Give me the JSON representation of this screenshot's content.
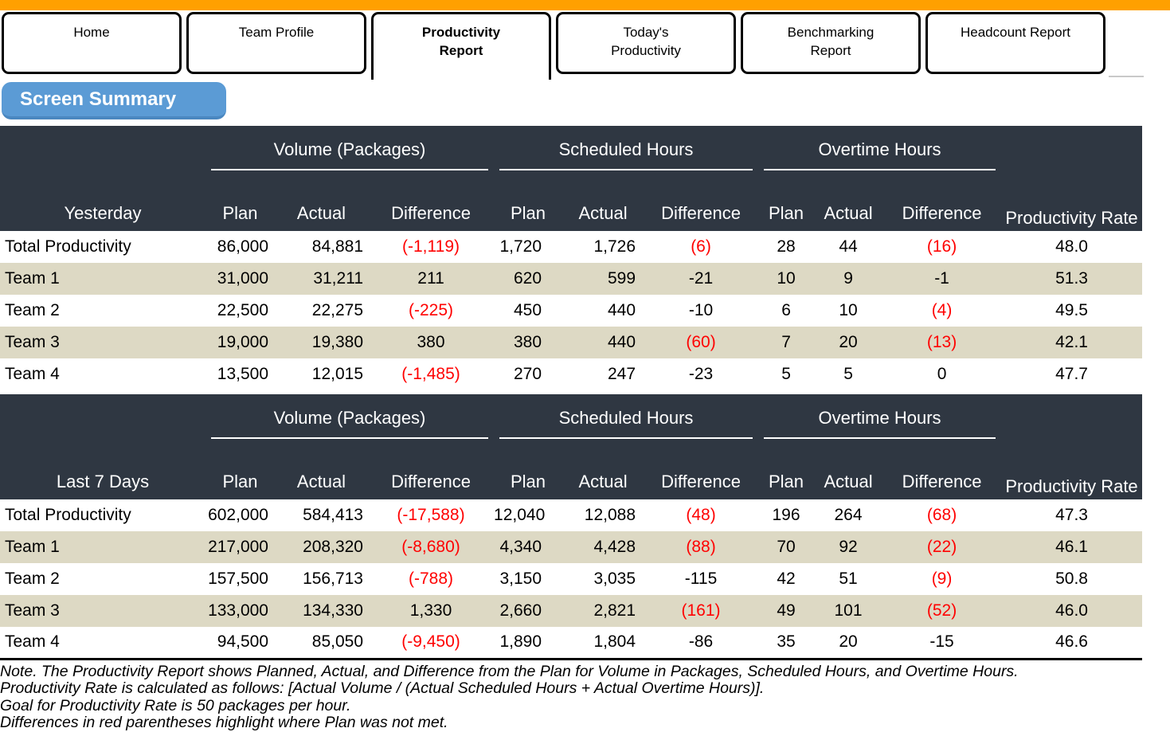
{
  "tabs": [
    {
      "label": "Home",
      "active": false
    },
    {
      "label": "Team Profile",
      "active": false
    },
    {
      "label": "Productivity\nReport",
      "active": true
    },
    {
      "label": "Today's\nProductivity",
      "active": false
    },
    {
      "label": "Benchmarking\nReport",
      "active": false
    },
    {
      "label": "Headcount Report",
      "active": false
    }
  ],
  "screen_summary_label": "Screen Summary",
  "colors": {
    "accent_orange": "#FFA000",
    "button_blue": "#5B9BD5",
    "header_dark": "#2F3742",
    "row_tan": "#DDD9C4",
    "negative_red": "#FF0000"
  },
  "tables": [
    {
      "period_label": "Yesterday",
      "groups": [
        "Volume (Packages)",
        "Scheduled Hours",
        "Overtime Hours"
      ],
      "rate_header": "Productivity Rate",
      "sub_headers": [
        "Plan",
        "Actual",
        "Difference",
        "Plan",
        "Actual",
        "Difference",
        "Plan",
        "Actual",
        "Difference"
      ],
      "rows": [
        {
          "label": "Total Productivity",
          "values": [
            "86,000",
            "84,881",
            "(-1,119)",
            "1,720",
            "1,726",
            "(6)",
            "28",
            "44",
            "(16)",
            "48.0"
          ],
          "red": [
            false,
            false,
            true,
            false,
            false,
            true,
            false,
            false,
            true,
            false
          ]
        },
        {
          "label": "Team 1",
          "values": [
            "31,000",
            "31,211",
            "211",
            "620",
            "599",
            "-21",
            "10",
            "9",
            "-1",
            "51.3"
          ],
          "red": [
            false,
            false,
            false,
            false,
            false,
            false,
            false,
            false,
            false,
            false
          ]
        },
        {
          "label": "Team 2",
          "values": [
            "22,500",
            "22,275",
            "(-225)",
            "450",
            "440",
            "-10",
            "6",
            "10",
            "(4)",
            "49.5"
          ],
          "red": [
            false,
            false,
            true,
            false,
            false,
            false,
            false,
            false,
            true,
            false
          ]
        },
        {
          "label": "Team 3",
          "values": [
            "19,000",
            "19,380",
            "380",
            "380",
            "440",
            "(60)",
            "7",
            "20",
            "(13)",
            "42.1"
          ],
          "red": [
            false,
            false,
            false,
            false,
            false,
            true,
            false,
            false,
            true,
            false
          ]
        },
        {
          "label": "Team 4",
          "values": [
            "13,500",
            "12,015",
            "(-1,485)",
            "270",
            "247",
            "-23",
            "5",
            "5",
            "0",
            "47.7"
          ],
          "red": [
            false,
            false,
            true,
            false,
            false,
            false,
            false,
            false,
            false,
            false
          ]
        }
      ]
    },
    {
      "period_label": "Last 7 Days",
      "groups": [
        "Volume (Packages)",
        "Scheduled Hours",
        "Overtime Hours"
      ],
      "rate_header": "Productivity Rate",
      "sub_headers": [
        "Plan",
        "Actual",
        "Difference",
        "Plan",
        "Actual",
        "Difference",
        "Plan",
        "Actual",
        "Difference"
      ],
      "rows": [
        {
          "label": "Total Productivity",
          "values": [
            "602,000",
            "584,413",
            "(-17,588)",
            "12,040",
            "12,088",
            "(48)",
            "196",
            "264",
            "(68)",
            "47.3"
          ],
          "red": [
            false,
            false,
            true,
            false,
            false,
            true,
            false,
            false,
            true,
            false
          ]
        },
        {
          "label": "Team 1",
          "values": [
            "217,000",
            "208,320",
            "(-8,680)",
            "4,340",
            "4,428",
            "(88)",
            "70",
            "92",
            "(22)",
            "46.1"
          ],
          "red": [
            false,
            false,
            true,
            false,
            false,
            true,
            false,
            false,
            true,
            false
          ]
        },
        {
          "label": "Team 2",
          "values": [
            "157,500",
            "156,713",
            "(-788)",
            "3,150",
            "3,035",
            "-115",
            "42",
            "51",
            "(9)",
            "50.8"
          ],
          "red": [
            false,
            false,
            true,
            false,
            false,
            false,
            false,
            false,
            true,
            false
          ]
        },
        {
          "label": "Team 3",
          "values": [
            "133,000",
            "134,330",
            "1,330",
            "2,660",
            "2,821",
            "(161)",
            "49",
            "101",
            "(52)",
            "46.0"
          ],
          "red": [
            false,
            false,
            false,
            false,
            false,
            true,
            false,
            false,
            true,
            false
          ]
        },
        {
          "label": "Team 4",
          "values": [
            "94,500",
            "85,050",
            "(-9,450)",
            "1,890",
            "1,804",
            "-86",
            "35",
            "20",
            "-15",
            "46.6"
          ],
          "red": [
            false,
            false,
            true,
            false,
            false,
            false,
            false,
            false,
            false,
            false
          ]
        }
      ]
    }
  ],
  "note_lines": [
    "Note. The Productivity Report shows Planned, Actual, and Difference from the Plan for Volume in Packages, Scheduled Hours, and Overtime Hours.",
    "Productivity Rate is calculated as follows: [Actual Volume / (Actual Scheduled Hours + Actual Overtime Hours)].",
    "Goal for Productivity Rate is 50 packages per hour.",
    "Differences in red parentheses highlight where Plan was not met."
  ]
}
